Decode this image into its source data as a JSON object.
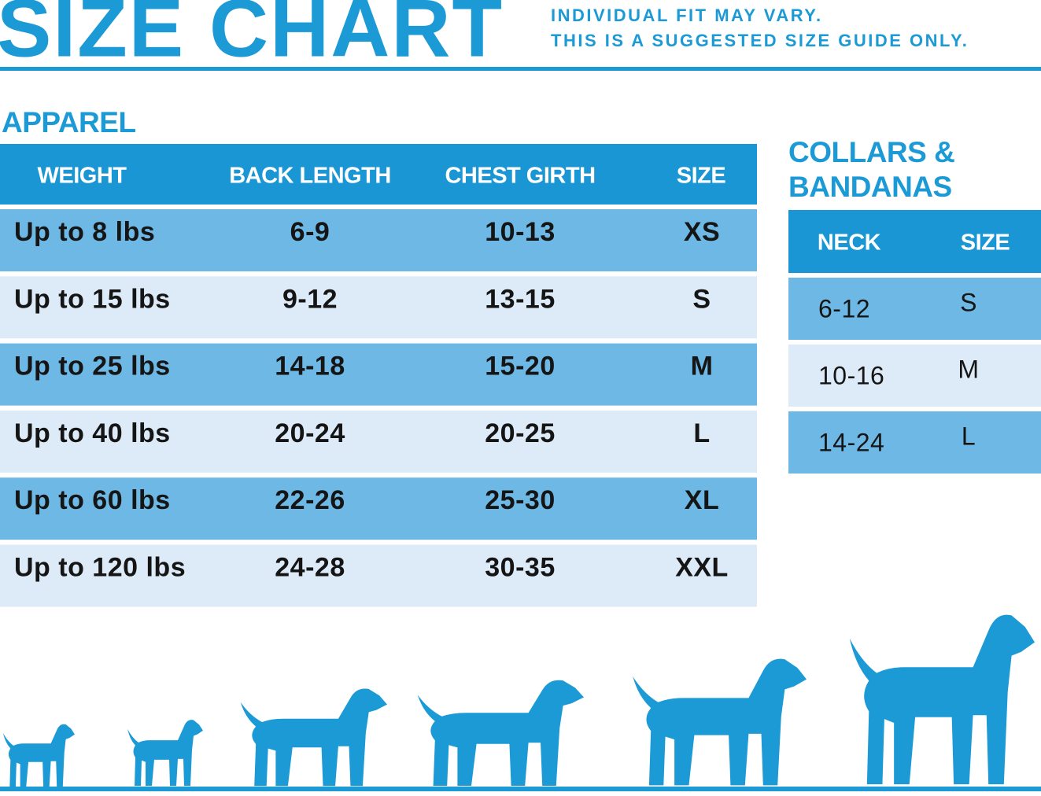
{
  "header": {
    "title": "SIZE CHART",
    "notes": [
      "INDIVIDUAL FIT MAY VARY.",
      "THIS IS A SUGGESTED SIZE GUIDE ONLY."
    ]
  },
  "apparel": {
    "title": "APPAREL",
    "columns": [
      "WEIGHT",
      "BACK LENGTH",
      "CHEST GIRTH",
      "SIZE"
    ],
    "rows": [
      [
        "Up to 8 lbs",
        "6-9",
        "10-13",
        "XS"
      ],
      [
        "Up to 15 lbs",
        "9-12",
        "13-15",
        "S"
      ],
      [
        "Up to 25 lbs",
        "14-18",
        "15-20",
        "M"
      ],
      [
        "Up to 40 lbs",
        "20-24",
        "20-25",
        "L"
      ],
      [
        "Up to 60 lbs",
        "22-26",
        "25-30",
        "XL"
      ],
      [
        "Up to 120 lbs",
        "24-28",
        "30-35",
        "XXL"
      ]
    ]
  },
  "collars": {
    "title": [
      "COLLARS &",
      "BANDANAS"
    ],
    "columns": [
      "NECK",
      "SIZE"
    ],
    "rows": [
      [
        "6-12",
        "S"
      ],
      [
        "10-16",
        "M"
      ],
      [
        "14-24",
        "L"
      ]
    ]
  }
}
